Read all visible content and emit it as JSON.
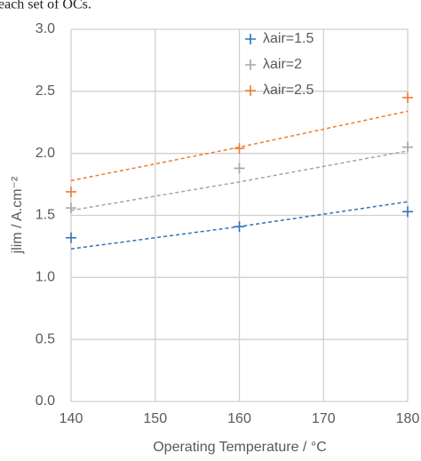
{
  "header_text": "each set of OCs.",
  "chart_data": {
    "type": "scatter",
    "x_label": "Operating Temperature / °C",
    "y_label": "jlim / A.cm⁻²",
    "xlim": [
      140,
      180
    ],
    "xticks": [
      140,
      150,
      160,
      170,
      180
    ],
    "ylim": [
      0,
      3
    ],
    "yticks": [
      {
        "value": 0,
        "label": "0.0"
      },
      0.5,
      {
        "value": 1,
        "label": "1.0"
      },
      1.5,
      {
        "value": 2,
        "label": "2.0"
      },
      2.5,
      {
        "value": 3,
        "label": "3.0"
      }
    ],
    "grid": true,
    "legend": "top",
    "series": [
      {
        "name": "λair=1.5",
        "color": "#2e75b6",
        "x": [
          140,
          160,
          180
        ],
        "values": [
          1.32,
          1.41,
          1.53
        ],
        "trendline": {
          "x": [
            140,
            160,
            180
          ],
          "values": [
            1.23,
            1.41,
            1.61
          ]
        }
      },
      {
        "name": "λair=2",
        "color": "#a5a5a5",
        "x": [
          140,
          160,
          180
        ],
        "values": [
          1.56,
          1.88,
          2.05
        ],
        "trendline": {
          "x": [
            140,
            160,
            180
          ],
          "values": [
            1.54,
            1.77,
            2.02
          ]
        }
      },
      {
        "name": "λair=2.5",
        "color": "#ed7d31",
        "x": [
          140,
          160,
          180
        ],
        "values": [
          1.69,
          2.04,
          2.45
        ],
        "trendline": {
          "x": [
            140,
            160,
            180
          ],
          "values": [
            1.78,
            2.05,
            2.34
          ]
        }
      }
    ]
  }
}
